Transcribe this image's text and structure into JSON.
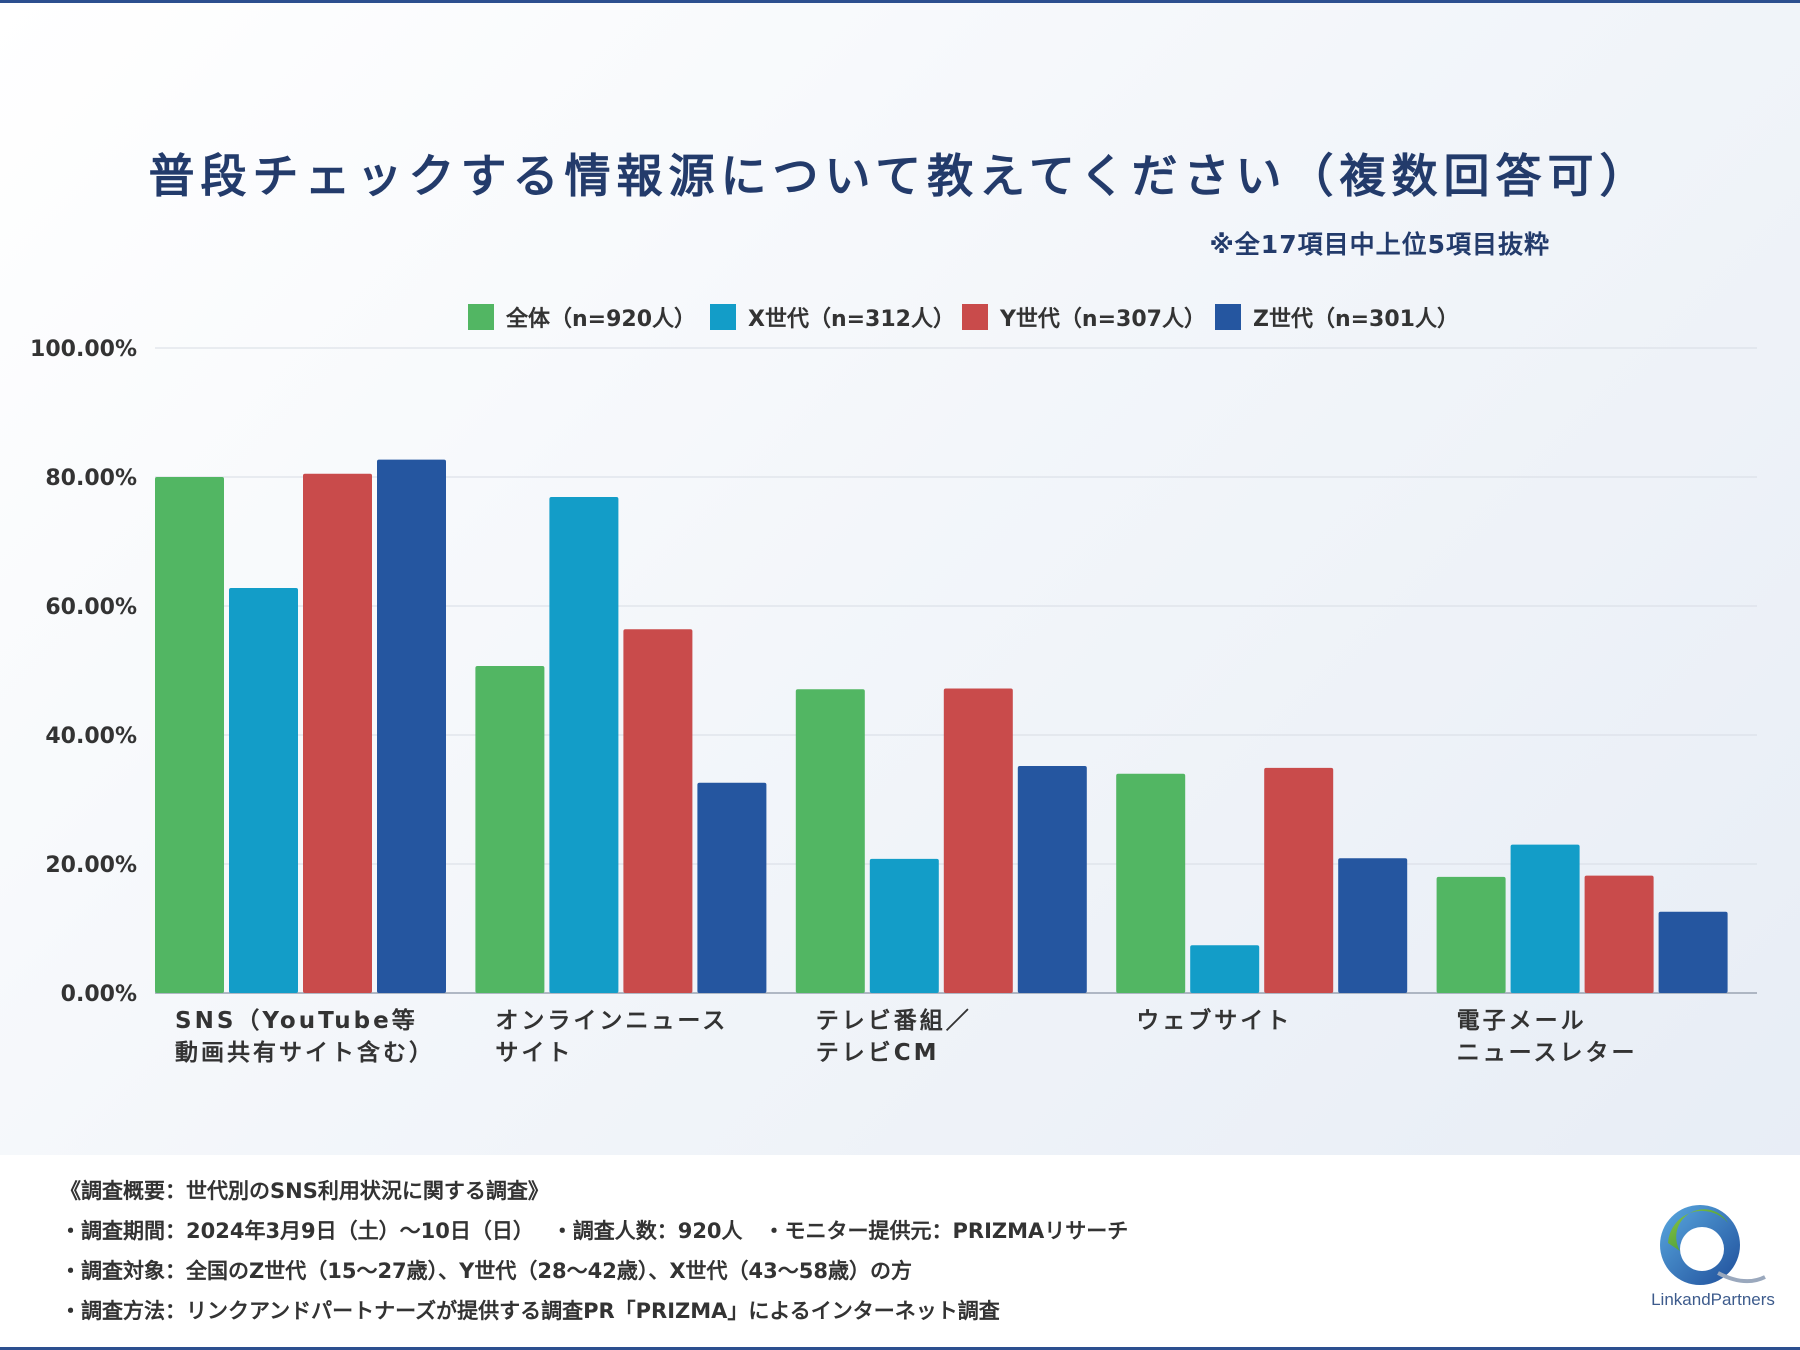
{
  "title": "普段チェックする情報源について教えてください（複数回答可）",
  "note": "※全17項目中上位5項目抜粋",
  "colors": {
    "all": "#52b663",
    "x": "#139dc8",
    "y": "#c94b4b",
    "z": "#2556a0",
    "grid": "#d7dce4",
    "axis_text": "#333333"
  },
  "chart_data": {
    "type": "bar",
    "title": "普段チェックする情報源について教えてください（複数回答可）",
    "categories": [
      [
        "SNS（YouTube等",
        "動画共有サイト含む）"
      ],
      [
        "オンラインニュース",
        "サイト"
      ],
      [
        "テレビ番組／",
        "テレビCM"
      ],
      [
        "ウェブサイト"
      ],
      [
        "電子メール",
        "ニュースレター"
      ]
    ],
    "series": [
      {
        "name": "全体（n=920人）",
        "color": "#52b663",
        "values": [
          80.0,
          50.7,
          47.1,
          34.0,
          18.0
        ]
      },
      {
        "name": "X世代（n=312人）",
        "color": "#139dc8",
        "values": [
          62.8,
          76.9,
          20.8,
          7.4,
          23.0
        ]
      },
      {
        "name": "Y世代（n=307人）",
        "color": "#c94b4b",
        "values": [
          80.5,
          56.4,
          47.2,
          34.9,
          18.2
        ]
      },
      {
        "name": "Z世代（n=301人）",
        "color": "#2556a0",
        "values": [
          82.7,
          32.6,
          35.2,
          20.9,
          12.6
        ]
      }
    ],
    "y_ticks": [
      "0.00%",
      "20.00%",
      "40.00%",
      "60.00%",
      "80.00%",
      "100.00%"
    ],
    "ylim": [
      0,
      100
    ],
    "grid": true,
    "legend_position": "top-center"
  },
  "footer": {
    "heading": "《調査概要：世代別のSNS利用状況に関する調査》",
    "line1": "・調査期間：2024年3月9日（土）～10日（日）　 ・調査人数：920人　・モニター提供元：PRIZMAリサーチ",
    "line2": "・調査対象：全国のZ世代（15～27歳）、Y世代（28～42歳）、X世代（43～58歳）の方",
    "line3": "・調査方法：リンクアンドパートナーズが提供する調査PR「PRIZMA」によるインターネット調査"
  },
  "logo": {
    "text": "LinkandPartners"
  }
}
